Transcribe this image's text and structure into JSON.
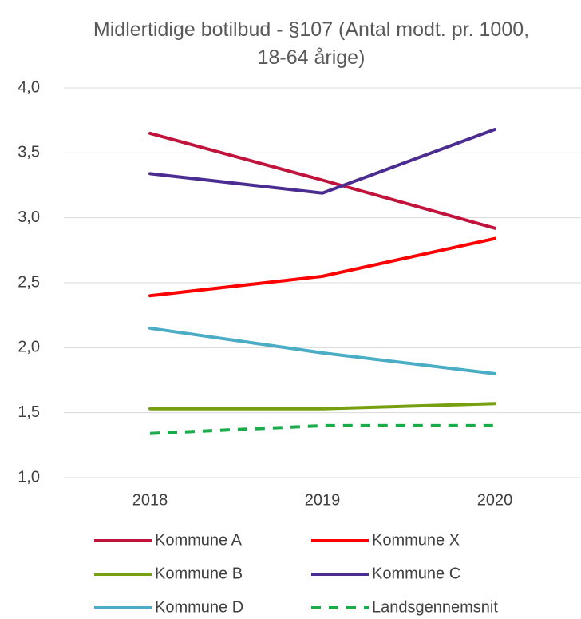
{
  "chart_data": {
    "type": "line",
    "title": "Midlertidige botilbud - §107 (Antal modt. pr. 1000, 18-64 årige)",
    "categories": [
      "2018",
      "2019",
      "2020"
    ],
    "series": [
      {
        "name": "Kommune A",
        "color": "#c0143c",
        "values": [
          3.65,
          3.29,
          2.92
        ]
      },
      {
        "name": "Kommune X",
        "color": "#ff0000",
        "values": [
          2.4,
          2.55,
          2.84
        ]
      },
      {
        "name": "Kommune B",
        "color": "#76a010",
        "values": [
          1.53,
          1.53,
          1.57
        ]
      },
      {
        "name": "Kommune C",
        "color": "#4b2d91",
        "values": [
          3.34,
          3.19,
          3.68
        ]
      },
      {
        "name": "Kommune D",
        "color": "#4bacc6",
        "values": [
          2.15,
          1.96,
          1.8
        ]
      },
      {
        "name": "Landsgennemsnit",
        "color": "#1aab4a",
        "dashed": true,
        "values": [
          1.34,
          1.4,
          1.4
        ]
      }
    ],
    "ylim": [
      1,
      4
    ],
    "yticks": [
      {
        "value": 1,
        "label": "1,0"
      },
      {
        "value": 1.5,
        "label": "1,5"
      },
      {
        "value": 2,
        "label": "2,0"
      },
      {
        "value": 2.5,
        "label": "2,5"
      },
      {
        "value": 3,
        "label": "3,0"
      },
      {
        "value": 3.5,
        "label": "3,5"
      },
      {
        "value": 4,
        "label": "4,0"
      }
    ],
    "grid": true,
    "legend": "bottom"
  }
}
